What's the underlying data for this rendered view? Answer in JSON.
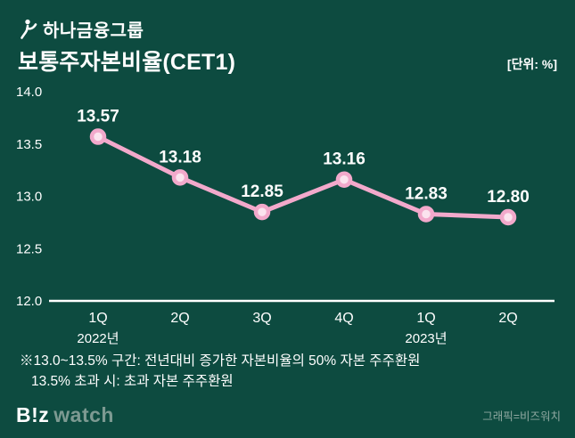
{
  "header": {
    "logo_text": "하나금융그룹",
    "title": "보통주자본비율(CET1)",
    "unit": "[단위: %]"
  },
  "chart_data": {
    "type": "line",
    "title": "보통주자본비율(CET1)",
    "categories": [
      "1Q",
      "2Q",
      "3Q",
      "4Q",
      "1Q",
      "2Q"
    ],
    "values": [
      13.57,
      13.18,
      12.85,
      13.16,
      12.83,
      12.8
    ],
    "value_labels": [
      "13.57",
      "13.18",
      "12.85",
      "13.16",
      "12.83",
      "12.80"
    ],
    "ylim": [
      12.0,
      14.0
    ],
    "yticks": [
      14.0,
      13.5,
      13.0,
      12.5,
      12.0
    ],
    "ytick_labels": [
      "14.0",
      "13.5",
      "13.0",
      "12.5",
      "12.0"
    ],
    "year_labels": [
      {
        "label": "2022년",
        "index": 0
      },
      {
        "label": "2023년",
        "index": 4
      }
    ],
    "grid": false,
    "legend": false,
    "line_color": "#f2a9cb",
    "marker_fill": "#fbe3ee",
    "axis_color": "#ffffff",
    "value_label_color": "#ffffff"
  },
  "footnote": {
    "line1": "※13.0~13.5% 구간: 전년대비 증가한 자본비율의 50% 자본 주주환원",
    "line2": "13.5% 초과 시: 초과 자본 주주환원"
  },
  "footer": {
    "logo_biz": "B!z",
    "logo_watch": "watch",
    "credit": "그래픽=비즈워치"
  },
  "colors": {
    "background": "#0d4b40",
    "accent_pink": "#f2a9cb"
  }
}
